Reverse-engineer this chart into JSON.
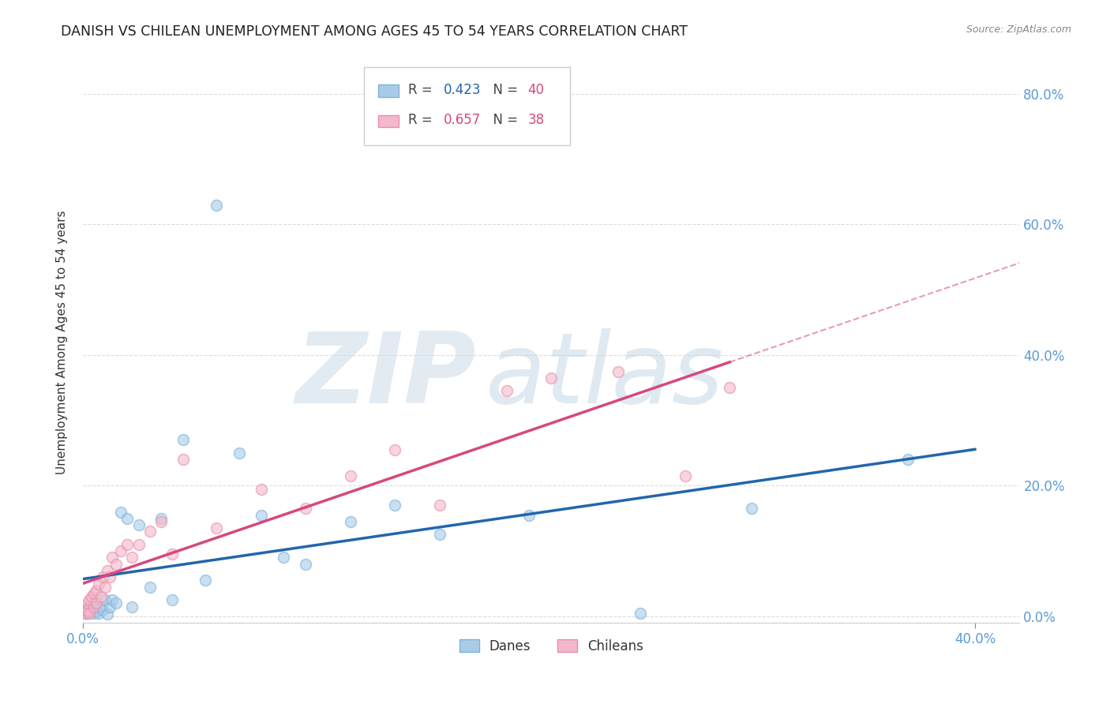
{
  "title": "DANISH VS CHILEAN UNEMPLOYMENT AMONG AGES 45 TO 54 YEARS CORRELATION CHART",
  "source": "Source: ZipAtlas.com",
  "ylabel": "Unemployment Among Ages 45 to 54 years",
  "xlim": [
    0.0,
    0.42
  ],
  "ylim": [
    -0.01,
    0.85
  ],
  "yticks": [
    0.0,
    0.2,
    0.4,
    0.6,
    0.8
  ],
  "ytick_labels_right": [
    "0.0%",
    "20.0%",
    "40.0%",
    "60.0%",
    "80.0%"
  ],
  "xtick_positions": [
    0.0,
    0.4
  ],
  "xtick_labels": [
    "0.0%",
    "40.0%"
  ],
  "danes_R": 0.423,
  "danes_N": 40,
  "chileans_R": 0.657,
  "chileans_N": 38,
  "danes_color": "#a8cce8",
  "danes_edge_color": "#7fb3d9",
  "danes_line_color": "#2166ac",
  "chileans_color": "#f4b8cc",
  "chileans_edge_color": "#e88fa8",
  "chileans_line_color": "#d6487e",
  "danes_x": [
    0.001,
    0.001,
    0.002,
    0.002,
    0.003,
    0.003,
    0.004,
    0.004,
    0.005,
    0.005,
    0.006,
    0.007,
    0.008,
    0.009,
    0.01,
    0.011,
    0.012,
    0.013,
    0.015,
    0.017,
    0.02,
    0.022,
    0.025,
    0.03,
    0.035,
    0.04,
    0.045,
    0.055,
    0.06,
    0.07,
    0.08,
    0.09,
    0.1,
    0.12,
    0.14,
    0.16,
    0.2,
    0.25,
    0.3,
    0.37
  ],
  "danes_y": [
    0.005,
    0.01,
    0.005,
    0.012,
    0.008,
    0.015,
    0.01,
    0.018,
    0.005,
    0.02,
    0.008,
    0.005,
    0.015,
    0.01,
    0.025,
    0.003,
    0.015,
    0.025,
    0.02,
    0.16,
    0.15,
    0.015,
    0.14,
    0.045,
    0.15,
    0.025,
    0.27,
    0.055,
    0.63,
    0.25,
    0.155,
    0.09,
    0.08,
    0.145,
    0.17,
    0.125,
    0.155,
    0.005,
    0.165,
    0.24
  ],
  "chileans_x": [
    0.001,
    0.001,
    0.002,
    0.002,
    0.003,
    0.003,
    0.004,
    0.005,
    0.005,
    0.006,
    0.006,
    0.007,
    0.008,
    0.009,
    0.01,
    0.011,
    0.012,
    0.013,
    0.015,
    0.017,
    0.02,
    0.022,
    0.025,
    0.03,
    0.035,
    0.04,
    0.045,
    0.06,
    0.08,
    0.1,
    0.12,
    0.14,
    0.16,
    0.19,
    0.21,
    0.24,
    0.27,
    0.29
  ],
  "chileans_y": [
    0.005,
    0.01,
    0.008,
    0.02,
    0.005,
    0.025,
    0.03,
    0.015,
    0.035,
    0.02,
    0.04,
    0.05,
    0.03,
    0.06,
    0.045,
    0.07,
    0.06,
    0.09,
    0.08,
    0.1,
    0.11,
    0.09,
    0.11,
    0.13,
    0.145,
    0.095,
    0.24,
    0.135,
    0.195,
    0.165,
    0.215,
    0.255,
    0.17,
    0.345,
    0.365,
    0.375,
    0.215,
    0.35
  ],
  "watermark_zip_color": "#d0dce8",
  "watermark_atlas_color": "#b8cfe0",
  "background_color": "#ffffff",
  "grid_color": "#dddddd",
  "title_color": "#222222",
  "axis_label_color": "#333333",
  "right_tick_color": "#5b9bd5",
  "bottom_tick_color": "#5b9bd5",
  "legend_danes_R_color": "#2166ac",
  "legend_N_color": "#d6487e",
  "legend_chileans_R_color": "#d6487e"
}
